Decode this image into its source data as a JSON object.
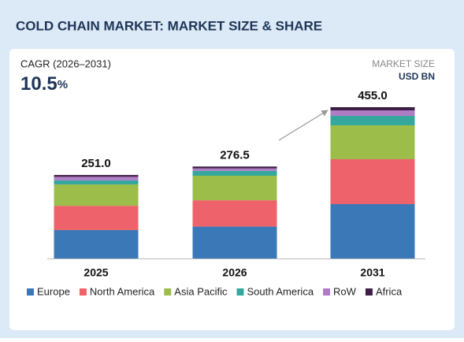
{
  "chart_data": {
    "type": "stacked_bar",
    "title": "COLD CHAIN MARKET: MARKET SIZE & SHARE",
    "cagr_label": "CAGR (2026–2031)",
    "cagr_value": 10.5,
    "cagr_unit": "%",
    "unit_label": "MARKET SIZE",
    "unit": "USD BN",
    "categories": [
      "2025",
      "2026",
      "2031"
    ],
    "totals": [
      251.0,
      276.5,
      455.0
    ],
    "total_labels": [
      "251.0",
      "276.5",
      "455.0"
    ],
    "series": [
      {
        "name": "Europe",
        "color": "#3a78b8",
        "values": [
          85.4,
          95.8,
          163.5
        ]
      },
      {
        "name": "North America",
        "color": "#ee636b",
        "values": [
          73.0,
          79.3,
          135.1
        ]
      },
      {
        "name": "Asia Pacific",
        "color": "#9cbd4a",
        "values": [
          64.1,
          73.7,
          101.9
        ]
      },
      {
        "name": "South America",
        "color": "#36a79c",
        "values": [
          12.5,
          14.7,
          28.4
        ]
      },
      {
        "name": "RoW",
        "color": "#b07cc6",
        "values": [
          10.7,
          7.4,
          16.6
        ]
      },
      {
        "name": "Africa",
        "color": "#3d1f45",
        "values": [
          5.3,
          5.6,
          9.5
        ]
      }
    ]
  }
}
